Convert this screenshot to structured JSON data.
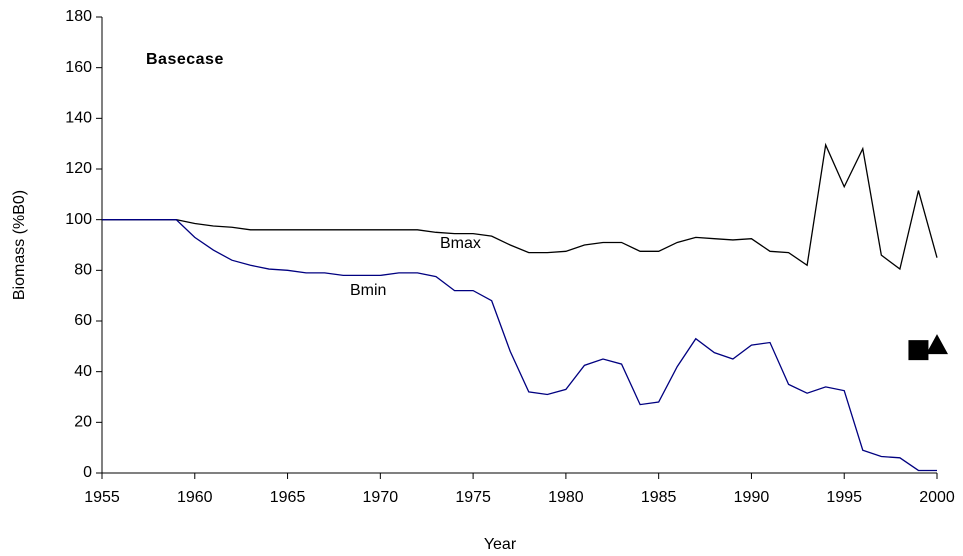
{
  "chart_data": {
    "type": "line",
    "x_label": "Year",
    "y_label": "Biomass (%B0)",
    "annotations": [
      "Basecase",
      "Bmax",
      "Bmin"
    ],
    "x": [
      1955,
      1956,
      1957,
      1958,
      1959,
      1960,
      1961,
      1962,
      1963,
      1964,
      1965,
      1966,
      1967,
      1968,
      1969,
      1970,
      1971,
      1972,
      1973,
      1974,
      1975,
      1976,
      1977,
      1978,
      1979,
      1980,
      1981,
      1982,
      1983,
      1984,
      1985,
      1986,
      1987,
      1988,
      1989,
      1990,
      1991,
      1992,
      1993,
      1994,
      1995,
      1996,
      1997,
      1998,
      1999,
      2000
    ],
    "series": [
      {
        "color": "#000000",
        "values": [
          100,
          100,
          100,
          100,
          100,
          98.5,
          97.5,
          97,
          96,
          96,
          96,
          96,
          96,
          96,
          96,
          96,
          96,
          96,
          95,
          94.5,
          94.5,
          93.5,
          90,
          87,
          87,
          87.5,
          90,
          91,
          91,
          87.5,
          87.5,
          91,
          93,
          92.5,
          92,
          92.5,
          87.5,
          87,
          82,
          129.5,
          113,
          128,
          86,
          80.5,
          111.5,
          85
        ]
      },
      {
        "color": "#000080",
        "values": [
          100,
          100,
          100,
          100,
          100,
          93,
          88,
          84,
          82,
          80.5,
          80,
          79,
          79,
          78,
          78,
          78,
          79,
          79,
          77.5,
          72,
          72,
          68,
          48,
          32,
          31,
          33,
          42.5,
          45,
          43,
          27,
          28,
          42,
          53,
          47.5,
          45,
          50.5,
          51.5,
          35,
          31.5,
          34,
          32.5,
          9,
          6.5,
          6,
          1,
          1
        ]
      }
    ],
    "points": [
      {
        "x": 1999,
        "y": 48.5,
        "marker": "square",
        "color": "#000000"
      },
      {
        "x": 2000,
        "y": 50.5,
        "marker": "triangle",
        "color": "#000000"
      }
    ],
    "xlim": [
      1955,
      2000
    ],
    "xticks": [
      1955,
      1960,
      1965,
      1970,
      1975,
      1980,
      1985,
      1990,
      1995,
      2000
    ],
    "ylim": [
      0,
      180
    ],
    "yticks": [
      0,
      20,
      40,
      60,
      80,
      100,
      120,
      140,
      160,
      180
    ],
    "grid": false
  }
}
